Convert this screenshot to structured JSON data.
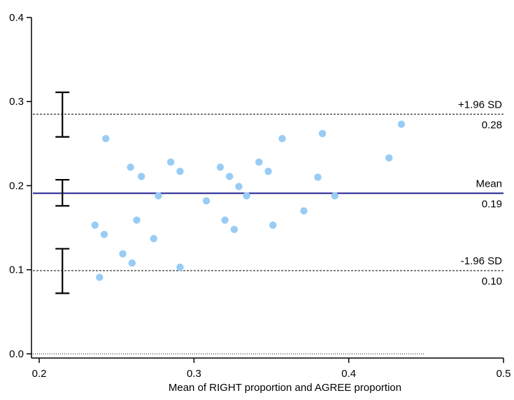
{
  "chart_data": {
    "type": "scatter",
    "title": "",
    "xlabel": "Mean of RIGHT proportion and AGREE proportion",
    "ylabel": "",
    "xlim": [
      0.195,
      0.5
    ],
    "ylim": [
      -0.005,
      0.4
    ],
    "x_ticks": [
      0.2,
      0.3,
      0.4,
      0.5
    ],
    "x_tick_labels": [
      "0.2",
      "0.3",
      "0.4",
      "0.5"
    ],
    "y_ticks": [
      0.0,
      0.1,
      0.2,
      0.3,
      0.4
    ],
    "y_tick_labels": [
      "0.0",
      "0.1",
      "0.2",
      "0.3",
      "0.4"
    ],
    "grid": false,
    "colors": {
      "points": "#99ccf5",
      "mean_line": "#1f1f8f",
      "limit_lines": "#000000"
    },
    "points": [
      {
        "x": 0.236,
        "y": 0.153
      },
      {
        "x": 0.239,
        "y": 0.091
      },
      {
        "x": 0.242,
        "y": 0.142
      },
      {
        "x": 0.243,
        "y": 0.256
      },
      {
        "x": 0.254,
        "y": 0.119
      },
      {
        "x": 0.259,
        "y": 0.222
      },
      {
        "x": 0.26,
        "y": 0.108
      },
      {
        "x": 0.263,
        "y": 0.159
      },
      {
        "x": 0.266,
        "y": 0.211
      },
      {
        "x": 0.274,
        "y": 0.137
      },
      {
        "x": 0.277,
        "y": 0.188
      },
      {
        "x": 0.285,
        "y": 0.228
      },
      {
        "x": 0.291,
        "y": 0.217
      },
      {
        "x": 0.291,
        "y": 0.103
      },
      {
        "x": 0.308,
        "y": 0.182
      },
      {
        "x": 0.317,
        "y": 0.222
      },
      {
        "x": 0.32,
        "y": 0.159
      },
      {
        "x": 0.323,
        "y": 0.211
      },
      {
        "x": 0.326,
        "y": 0.148
      },
      {
        "x": 0.329,
        "y": 0.199
      },
      {
        "x": 0.334,
        "y": 0.188
      },
      {
        "x": 0.342,
        "y": 0.228
      },
      {
        "x": 0.348,
        "y": 0.217
      },
      {
        "x": 0.351,
        "y": 0.153
      },
      {
        "x": 0.357,
        "y": 0.256
      },
      {
        "x": 0.371,
        "y": 0.17
      },
      {
        "x": 0.38,
        "y": 0.21
      },
      {
        "x": 0.383,
        "y": 0.262
      },
      {
        "x": 0.391,
        "y": 0.188
      },
      {
        "x": 0.426,
        "y": 0.233
      },
      {
        "x": 0.434,
        "y": 0.273
      }
    ],
    "reference_lines": [
      {
        "label": "+1.96 SD",
        "value_label": "0.28",
        "y": 0.285,
        "style": "dashed"
      },
      {
        "label": "Mean",
        "value_label": "0.19",
        "y": 0.191,
        "style": "solid"
      },
      {
        "label": "-1.96 SD",
        "value_label": "0.10",
        "y": 0.099,
        "style": "dashed"
      }
    ],
    "zero_line": {
      "y": 0.0,
      "x_end": 0.449,
      "style": "dotted"
    },
    "confidence_intervals": [
      {
        "x": 0.215,
        "low": 0.258,
        "high": 0.311
      },
      {
        "x": 0.215,
        "low": 0.176,
        "high": 0.207
      },
      {
        "x": 0.215,
        "low": 0.072,
        "high": 0.125
      }
    ]
  }
}
